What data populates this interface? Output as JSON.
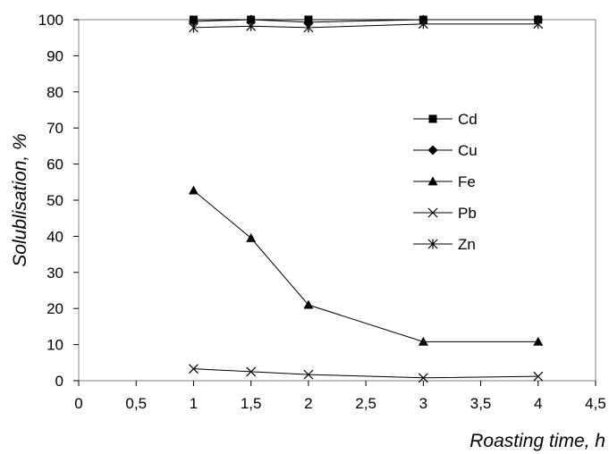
{
  "chart_data": {
    "type": "line",
    "xlabel": "Roasting time, h",
    "ylabel": "Solublisation, %",
    "xlim": [
      0,
      4.5
    ],
    "ylim": [
      0,
      100
    ],
    "xticks": [
      "0",
      "0,5",
      "1",
      "1,5",
      "2",
      "2,5",
      "3",
      "3,5",
      "4",
      "4,5"
    ],
    "yticks": [
      "0",
      "10",
      "20",
      "30",
      "40",
      "50",
      "60",
      "70",
      "80",
      "90",
      "100"
    ],
    "grid": false,
    "legend_position": "right",
    "x": [
      1,
      1.5,
      2,
      3,
      4
    ],
    "series": [
      {
        "name": "Cd",
        "marker": "square",
        "values": [
          100,
          100,
          100,
          100,
          100
        ]
      },
      {
        "name": "Cu",
        "marker": "diamond",
        "values": [
          99.5,
          100,
          99.3,
          100,
          100
        ]
      },
      {
        "name": "Fe",
        "marker": "triangle",
        "values": [
          52.7,
          39.5,
          21.0,
          10.8,
          10.8
        ]
      },
      {
        "name": "Pb",
        "marker": "x",
        "values": [
          3.3,
          2.5,
          1.7,
          0.8,
          1.2
        ]
      },
      {
        "name": "Zn",
        "marker": "star",
        "values": [
          97.8,
          98.2,
          97.8,
          98.8,
          98.8
        ]
      }
    ]
  }
}
